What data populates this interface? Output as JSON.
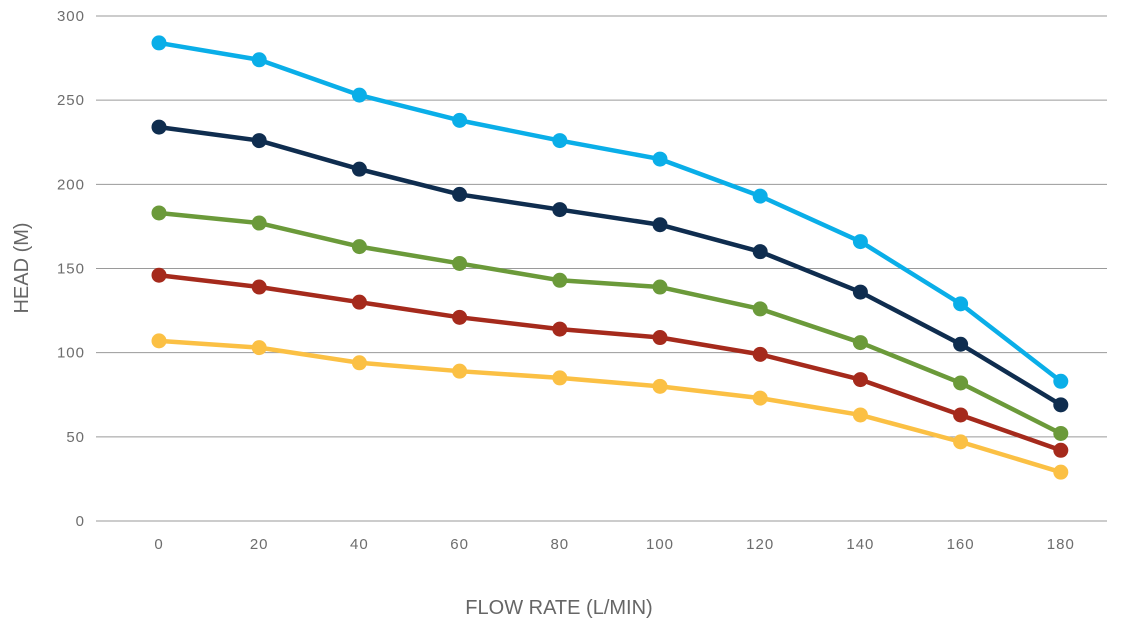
{
  "chart_data": {
    "type": "line",
    "xlabel": "FLOW RATE (L/MIN)",
    "ylabel": "HEAD (M)",
    "x": [
      0,
      20,
      40,
      60,
      80,
      100,
      120,
      140,
      160,
      180
    ],
    "x_tick_labels": [
      "0",
      "20",
      "40",
      "60",
      "80",
      "100",
      "120",
      "140",
      "160",
      "180"
    ],
    "y_ticks": [
      0,
      50,
      100,
      150,
      200,
      250,
      300
    ],
    "y_tick_labels": [
      "0",
      "50",
      "100",
      "150",
      "200",
      "250",
      "300"
    ],
    "ylim": [
      0,
      300
    ],
    "grid": "horizontal",
    "legend": "none",
    "series": [
      {
        "color": "#0aaee8",
        "values": [
          284,
          274,
          253,
          238,
          226,
          215,
          193,
          166,
          129,
          83
        ]
      },
      {
        "color": "#0f2d4f",
        "values": [
          234,
          226,
          209,
          194,
          185,
          176,
          160,
          136,
          105,
          69
        ]
      },
      {
        "color": "#6b9a3a",
        "values": [
          183,
          177,
          163,
          153,
          143,
          139,
          126,
          106,
          82,
          52
        ]
      },
      {
        "color": "#a52a1c",
        "values": [
          146,
          139,
          130,
          121,
          114,
          109,
          99,
          84,
          63,
          42
        ]
      },
      {
        "color": "#fbc044",
        "values": [
          107,
          103,
          94,
          89,
          85,
          80,
          73,
          63,
          47,
          29
        ]
      }
    ]
  }
}
